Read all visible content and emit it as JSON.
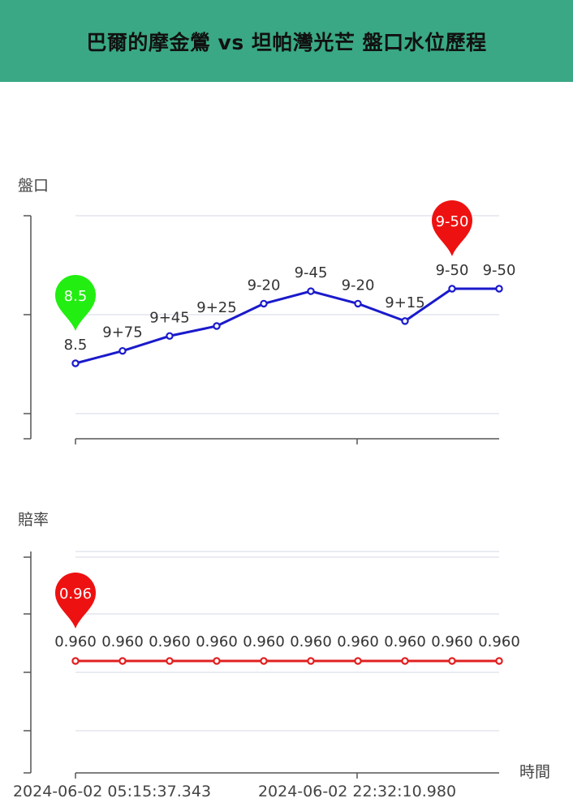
{
  "header": {
    "title": "巴爾的摩金鶯 vs 坦帕灣光芒 盤口水位歷程"
  },
  "colors": {
    "header_bg": "#3aa884",
    "line_chart1": "#1a1acc",
    "line_chart2": "#e02020",
    "pin_start": "#22ee11",
    "pin_end": "#ee1111"
  },
  "chart_data": [
    {
      "type": "line",
      "ylabel": "盤口",
      "labels": [
        "8.5",
        "9+75",
        "9+45",
        "9+25",
        "9-20",
        "9-45",
        "9-20",
        "9+15",
        "9-50",
        "9-50"
      ],
      "values": [
        8.5,
        8.75,
        9.05,
        9.25,
        9.7,
        9.95,
        9.7,
        9.35,
        10.0,
        10.0
      ],
      "pins": [
        {
          "index": 0,
          "label": "8.5",
          "color": "#22ee11"
        },
        {
          "index": 8,
          "label": "9-50",
          "color": "#ee1111"
        }
      ],
      "grid": true
    },
    {
      "type": "line",
      "ylabel": "賠率",
      "xlabel": "時間",
      "x_ticks": [
        "2024-06-02 05:15:37.343",
        "2024-06-02 22:32:10.980"
      ],
      "labels": [
        "0.960",
        "0.960",
        "0.960",
        "0.960",
        "0.960",
        "0.960",
        "0.960",
        "0.960",
        "0.960",
        "0.960"
      ],
      "values": [
        0.96,
        0.96,
        0.96,
        0.96,
        0.96,
        0.96,
        0.96,
        0.96,
        0.96,
        0.96
      ],
      "pins": [
        {
          "index": 0,
          "label": "0.96",
          "color": "#ee1111"
        }
      ],
      "grid": true
    }
  ]
}
